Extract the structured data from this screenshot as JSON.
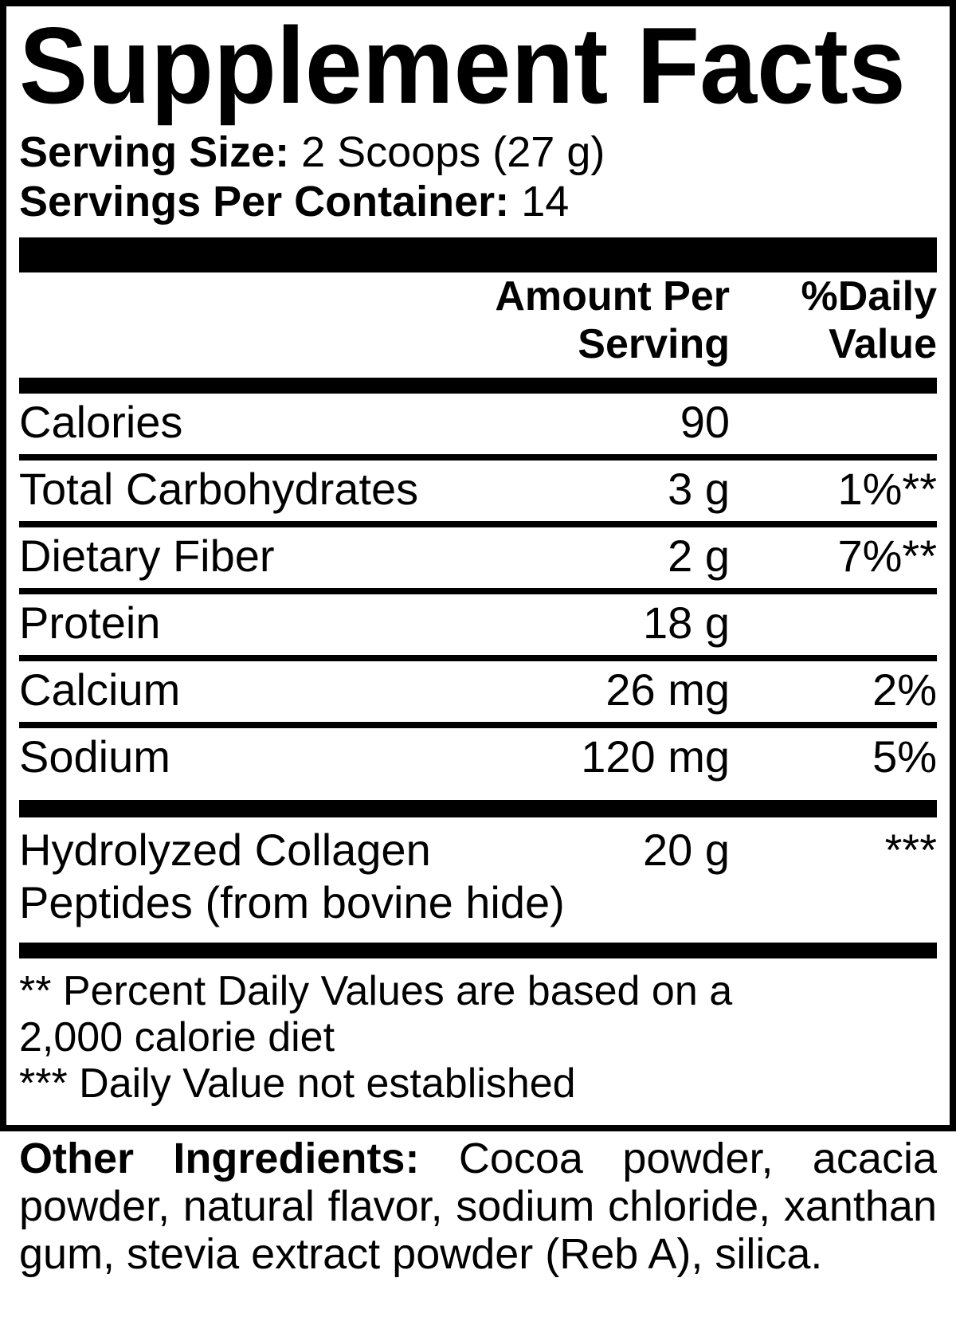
{
  "colors": {
    "ink": "#000000",
    "background": "#ffffff"
  },
  "panel": {
    "title": "Supplement Facts",
    "serving": {
      "size_label": "Serving Size:",
      "size_value": "2 Scoops (27 g)",
      "per_container_label": "Servings Per Container:",
      "per_container_value": "14"
    },
    "header": {
      "amount_per_serving": "Amount Per\nServing",
      "daily_value": "%Daily\nValue"
    },
    "rows": [
      {
        "name": "Calories",
        "amount": "90",
        "dv": ""
      },
      {
        "name": "Total Carbohydrates",
        "amount": "3 g",
        "dv": "1%**"
      },
      {
        "name": "Dietary Fiber",
        "amount": "2 g",
        "dv": "7%**"
      },
      {
        "name": "Protein",
        "amount": "18 g",
        "dv": ""
      },
      {
        "name": "Calcium",
        "amount": "26 mg",
        "dv": "2%"
      },
      {
        "name": "Sodium",
        "amount": "120 mg",
        "dv": "5%"
      }
    ],
    "collagen_row": {
      "name": "Hydrolyzed Collagen\nPeptides (from bovine hide)",
      "amount": "20 g",
      "dv": "***"
    },
    "footnotes": {
      "line1": "** Percent Daily Values are based on a",
      "line2": "2,000 calorie diet",
      "line3": "*** Daily Value not established"
    }
  },
  "other_ingredients": {
    "label": "Other Ingredients:",
    "text": "Cocoa powder, acacia powder, natural flavor, sodium chloride, xanthan gum, stevia extract powder (Reb A), silica."
  }
}
